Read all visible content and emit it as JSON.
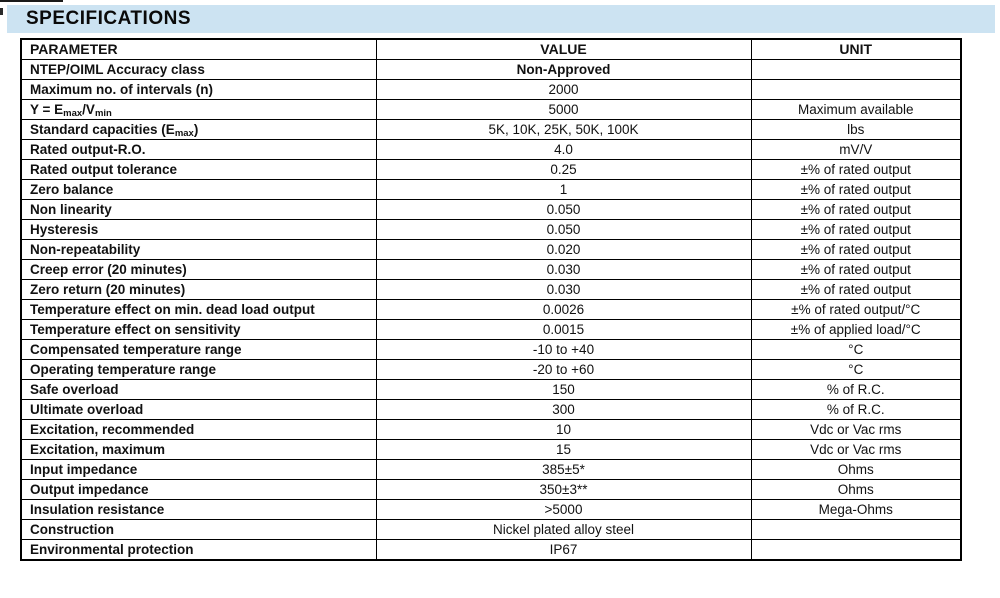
{
  "title": "SPECIFICATIONS",
  "colors": {
    "title_band_bg": "#cce3f2",
    "table_border": "#000000",
    "text": "#111111"
  },
  "table": {
    "columns": [
      "PARAMETER",
      "VALUE",
      "UNIT"
    ],
    "rows": [
      {
        "param": "NTEP/OIML Accuracy class",
        "value": "Non-Approved",
        "unit": "",
        "vbold": true
      },
      {
        "param": "Maximum no. of intervals (n)",
        "value": "2000",
        "unit": ""
      },
      {
        "param": [
          "Y = E",
          [
            "max"
          ],
          "/V",
          [
            "min"
          ]
        ],
        "value": "5000",
        "unit": "Maximum available"
      },
      {
        "param": [
          "Standard capacities (E",
          [
            "max"
          ],
          ")"
        ],
        "value": "5K, 10K, 25K, 50K, 100K",
        "unit": "lbs"
      },
      {
        "param": "Rated output-R.O.",
        "value": "4.0",
        "unit": "mV/V"
      },
      {
        "param": "Rated output tolerance",
        "value": "0.25",
        "unit": "±% of rated output"
      },
      {
        "param": "Zero balance",
        "value": "1",
        "unit": "±% of rated output"
      },
      {
        "param": "Non linearity",
        "value": "0.050",
        "unit": "±% of rated output"
      },
      {
        "param": "Hysteresis",
        "value": "0.050",
        "unit": "±% of rated output"
      },
      {
        "param": "Non-repeatability",
        "value": "0.020",
        "unit": "±% of rated output"
      },
      {
        "param": "Creep error (20 minutes)",
        "value": "0.030",
        "unit": "±% of rated output"
      },
      {
        "param": "Zero return (20 minutes)",
        "value": "0.030",
        "unit": "±% of rated output"
      },
      {
        "param": "Temperature effect on min. dead load output",
        "value": "0.0026",
        "unit": "±% of rated output/°C"
      },
      {
        "param": "Temperature effect on sensitivity",
        "value": "0.0015",
        "unit": "±% of applied load/°C"
      },
      {
        "param": "Compensated temperature range",
        "value": "-10 to +40",
        "unit": "°C"
      },
      {
        "param": "Operating temperature range",
        "value": "-20 to +60",
        "unit": "°C"
      },
      {
        "param": "Safe overload",
        "value": "150",
        "unit": "% of R.C."
      },
      {
        "param": "Ultimate overload",
        "value": "300",
        "unit": "% of R.C."
      },
      {
        "param": "Excitation, recommended",
        "value": "10",
        "unit": "Vdc or Vac rms"
      },
      {
        "param": "Excitation, maximum",
        "value": "15",
        "unit": "Vdc or Vac rms"
      },
      {
        "param": "Input impedance",
        "value": "385±5*",
        "unit": "Ohms"
      },
      {
        "param": "Output impedance",
        "value": "350±3**",
        "unit": "Ohms"
      },
      {
        "param": "Insulation resistance",
        "value": ">5000",
        "unit": "Mega-Ohms"
      },
      {
        "param": "Construction",
        "value": "Nickel plated alloy steel",
        "unit": ""
      },
      {
        "param": "Environmental protection",
        "value": "IP67",
        "unit": ""
      }
    ]
  }
}
